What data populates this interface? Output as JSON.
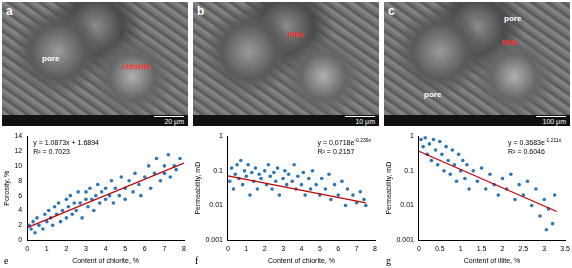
{
  "images": [
    {
      "label": "a",
      "scale_bar": "20 μm",
      "annotations": [
        {
          "text": "pore",
          "color": "#ffffff"
        },
        {
          "text": "chlorite",
          "color": "#ff3030"
        }
      ]
    },
    {
      "label": "b",
      "scale_bar": "10 μm",
      "annotations": [
        {
          "text": "illite",
          "color": "#ff3030"
        }
      ]
    },
    {
      "label": "c",
      "scale_bar": "100 μm",
      "annotations": [
        {
          "text": "pore",
          "color": "#ffffff"
        },
        {
          "text": "illite",
          "color": "#ff3030"
        },
        {
          "text": "pore",
          "color": "#ffffff"
        }
      ]
    }
  ],
  "chart_data": [
    {
      "type": "scatter",
      "label": "e",
      "x_label": "Content of chlorite, %",
      "y_label": "Porosity, %",
      "equation": {
        "text": "y = 1.0873x + 1.6894"
      },
      "r2": "R² = 0.7023",
      "xlim": [
        0,
        8
      ],
      "xticks": [
        0,
        1,
        2,
        3,
        4,
        5,
        6,
        7,
        8
      ],
      "ylim": [
        0,
        14
      ],
      "yticks": [
        0,
        2,
        4,
        6,
        8,
        10,
        12,
        14
      ],
      "grid": false,
      "series": [
        {
          "type": "scatter",
          "color": "#2e75b6",
          "marker": "circle",
          "x": [
            0.1,
            0.2,
            0.3,
            0.4,
            0.5,
            0.6,
            0.8,
            0.9,
            1,
            1.1,
            1.2,
            1.3,
            1.4,
            1.5,
            1.6,
            1.7,
            1.8,
            2,
            2,
            2.1,
            2.2,
            2.3,
            2.4,
            2.5,
            2.6,
            2.7,
            2.8,
            3,
            3,
            3.1,
            3.2,
            3.3,
            3.4,
            3.5,
            3.6,
            3.7,
            3.8,
            4,
            4,
            4.2,
            4.3,
            4.4,
            4.5,
            4.7,
            4.8,
            5,
            5,
            5.2,
            5.4,
            5.5,
            5.7,
            5.8,
            6,
            6.2,
            6.3,
            6.5,
            6.6,
            6.8,
            7,
            7,
            7.2,
            7.3,
            7.5,
            7.6,
            7.8
          ],
          "values": [
            2,
            1.5,
            2.5,
            1,
            3,
            2,
            1.5,
            3.5,
            2.5,
            4,
            3,
            2,
            4.5,
            3.5,
            5,
            2.5,
            4,
            3,
            5.5,
            4.5,
            6,
            3.5,
            5,
            4,
            6.5,
            5,
            3,
            5.5,
            6.5,
            4.5,
            7,
            5.5,
            4,
            6,
            7.5,
            5,
            6.5,
            5.5,
            7,
            6,
            8,
            5,
            7,
            6,
            8.5,
            7,
            5.5,
            8,
            6.5,
            9,
            7.5,
            6,
            8.5,
            10,
            7,
            9,
            11,
            8,
            10,
            9,
            11.5,
            8.5,
            10,
            9.5,
            11
          ]
        },
        {
          "type": "line",
          "color": "#c00000",
          "line_style": "solid",
          "x": [
            0,
            8
          ],
          "values": [
            1.69,
            10.39
          ]
        }
      ]
    },
    {
      "type": "scatter",
      "label": "f",
      "x_label": "Content of chlorite, %",
      "y_label": "Permeability, mD",
      "equation": {
        "text": "y = 0.0718e",
        "sup": "-0.239x"
      },
      "r2": "R² = 0.2157",
      "log": "y",
      "xlim": [
        0,
        8
      ],
      "xticks": [
        0,
        1,
        2,
        3,
        4,
        5,
        6,
        7,
        8
      ],
      "ylim": [
        0.001,
        1
      ],
      "yticks": [
        0.001,
        0.01,
        0.1,
        1
      ],
      "grid": false,
      "series": [
        {
          "type": "scatter",
          "color": "#2e75b6",
          "marker": "circle",
          "x": [
            0.1,
            0.2,
            0.3,
            0.4,
            0.5,
            0.6,
            0.7,
            0.8,
            0.9,
            1,
            1.1,
            1.2,
            1.3,
            1.4,
            1.5,
            1.6,
            1.7,
            1.8,
            2,
            2.1,
            2.2,
            2.3,
            2.4,
            2.5,
            2.6,
            2.7,
            2.8,
            3,
            3.1,
            3.2,
            3.3,
            3.5,
            3.6,
            3.7,
            3.8,
            4,
            4.1,
            4.2,
            4.4,
            4.5,
            4.6,
            4.8,
            5,
            5.1,
            5.3,
            5.5,
            5.6,
            5.8,
            6,
            6.2,
            6.4,
            6.5,
            6.8,
            7,
            7.2,
            7.4,
            7.5
          ],
          "values": [
            0.05,
            0.12,
            0.03,
            0.08,
            0.15,
            0.06,
            0.2,
            0.04,
            0.1,
            0.07,
            0.15,
            0.02,
            0.09,
            0.05,
            0.12,
            0.03,
            0.08,
            0.06,
            0.1,
            0.04,
            0.15,
            0.07,
            0.03,
            0.09,
            0.05,
            0.12,
            0.02,
            0.06,
            0.1,
            0.04,
            0.08,
            0.05,
            0.15,
            0.03,
            0.07,
            0.04,
            0.09,
            0.02,
            0.06,
            0.03,
            0.1,
            0.04,
            0.02,
            0.06,
            0.03,
            0.08,
            0.015,
            0.04,
            0.02,
            0.05,
            0.01,
            0.03,
            0.02,
            0.012,
            0.025,
            0.015,
            0.01
          ]
        },
        {
          "type": "line",
          "color": "#c00000",
          "line_style": "solid",
          "x": [
            0,
            7.5
          ],
          "values": [
            0.0718,
            0.012
          ]
        }
      ]
    },
    {
      "type": "scatter",
      "label": "g",
      "x_label": "Content of illite, %",
      "y_label": "Permeability, mD",
      "equation": {
        "text": "y = 0.3683e",
        "sup": "-1.211x"
      },
      "r2": "R² = 0.6046",
      "log": "y",
      "xlim": [
        0,
        3.5
      ],
      "xticks": [
        0,
        0.5,
        1,
        1.5,
        2,
        2.5,
        3,
        3.5
      ],
      "ylim": [
        0.001,
        1
      ],
      "yticks": [
        0.001,
        0.01,
        0.1,
        1
      ],
      "grid": false,
      "series": [
        {
          "type": "scatter",
          "color": "#2e75b6",
          "marker": "circle",
          "x": [
            0.05,
            0.1,
            0.15,
            0.2,
            0.25,
            0.3,
            0.35,
            0.4,
            0.45,
            0.5,
            0.55,
            0.6,
            0.65,
            0.7,
            0.75,
            0.8,
            0.85,
            0.9,
            0.95,
            1,
            1.05,
            1.1,
            1.15,
            1.2,
            1.3,
            1.4,
            1.5,
            1.6,
            1.7,
            1.8,
            1.9,
            2,
            2.1,
            2.2,
            2.3,
            2.4,
            2.5,
            2.6,
            2.7,
            2.8,
            2.9,
            3,
            3.05,
            3.1,
            3.2,
            3.25
          ],
          "values": [
            0.8,
            0.5,
            0.9,
            0.3,
            0.6,
            0.2,
            0.8,
            0.4,
            0.15,
            0.7,
            0.3,
            0.1,
            0.5,
            0.2,
            0.08,
            0.4,
            0.15,
            0.05,
            0.3,
            0.1,
            0.2,
            0.06,
            0.15,
            0.03,
            0.1,
            0.05,
            0.12,
            0.03,
            0.08,
            0.04,
            0.02,
            0.06,
            0.03,
            0.08,
            0.015,
            0.04,
            0.02,
            0.05,
            0.01,
            0.03,
            0.005,
            0.015,
            0.002,
            0.008,
            0.003,
            0.02
          ]
        },
        {
          "type": "line",
          "color": "#c00000",
          "line_style": "solid",
          "x": [
            0,
            3.3
          ],
          "values": [
            0.368,
            0.0067
          ]
        }
      ]
    }
  ]
}
